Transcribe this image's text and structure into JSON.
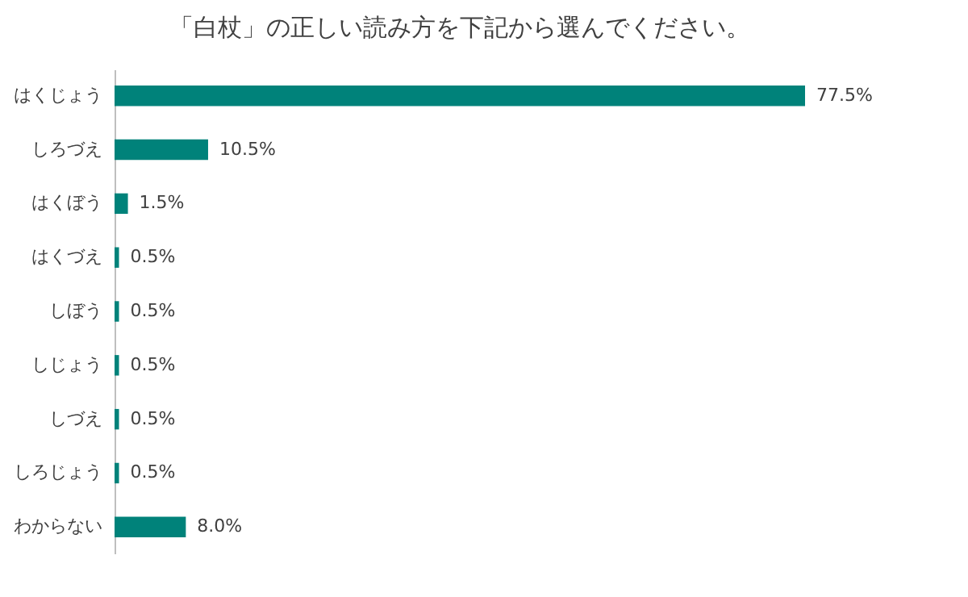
{
  "chart_data": {
    "type": "bar",
    "orientation": "horizontal",
    "title": "「白杖」の正しい読み方を下記から選んでください。",
    "categories": [
      "はくじょう",
      "しろづえ",
      "はくぼう",
      "はくづえ",
      "しぼう",
      "しじょう",
      "しづえ",
      "しろじょう",
      "わからない"
    ],
    "values": [
      77.5,
      10.5,
      1.5,
      0.5,
      0.5,
      0.5,
      0.5,
      0.5,
      8.0
    ],
    "value_labels": [
      "77.5%",
      "10.5%",
      "1.5%",
      "0.5%",
      "0.5%",
      "0.5%",
      "0.5%",
      "0.5%",
      "8.0%"
    ],
    "color": "#00827a",
    "grid": false
  }
}
